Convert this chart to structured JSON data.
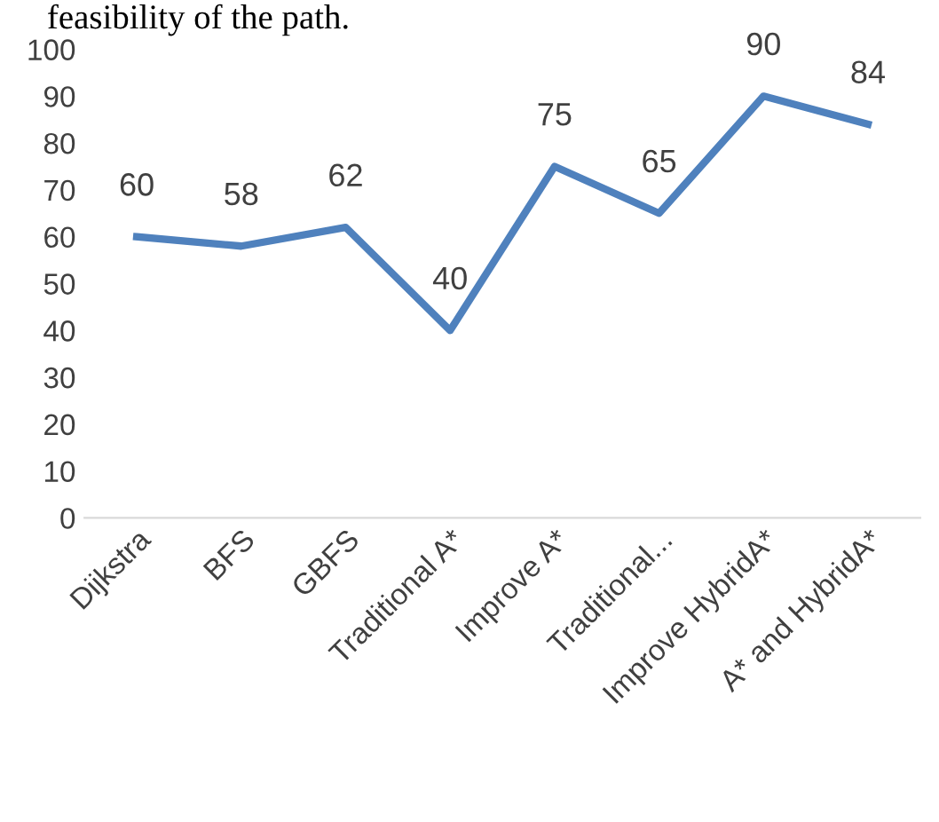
{
  "chart_data": {
    "type": "line",
    "annotations": [
      "feasibility of the path."
    ],
    "categories": [
      "Dijkstra",
      "BFS",
      "GBFS",
      "Traditional A*",
      "Improve A*",
      "Traditional...",
      "Improve HybridA*",
      "A* and HybridA*"
    ],
    "series": [
      {
        "color": "#4f81bd",
        "values": [
          60,
          58,
          62,
          40,
          75,
          65,
          90,
          84
        ]
      }
    ],
    "ylim": [
      0,
      100
    ],
    "yticks": [
      0,
      10,
      20,
      30,
      40,
      50,
      60,
      70,
      80,
      90,
      100
    ],
    "grid": false,
    "legend": false,
    "marker": "none",
    "line_style": "solid",
    "data_labels": true
  }
}
